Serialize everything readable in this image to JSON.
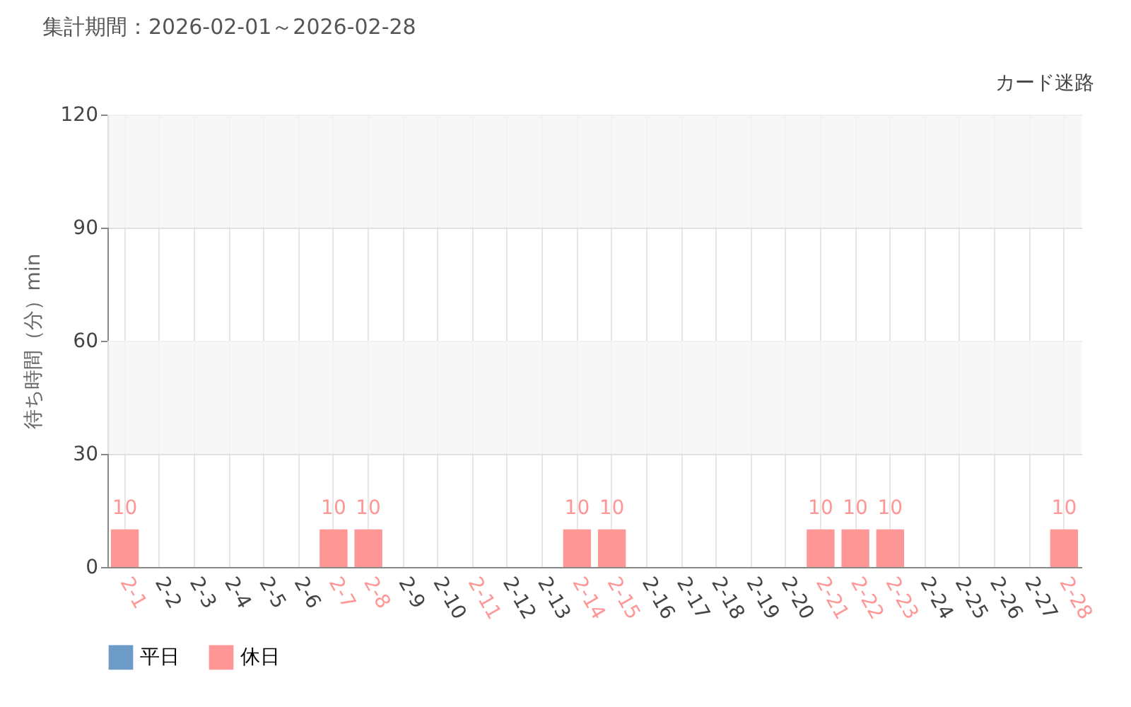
{
  "chart_data": {
    "type": "bar",
    "title": "集計期間：2026-02-01～2026-02-28",
    "subtitle": "カード迷路",
    "ylabel": "待ち時間（分）min",
    "categories": [
      "2-1",
      "2-2",
      "2-3",
      "2-4",
      "2-5",
      "2-6",
      "2-7",
      "2-8",
      "2-9",
      "2-10",
      "2-11",
      "2-12",
      "2-13",
      "2-14",
      "2-15",
      "2-16",
      "2-17",
      "2-18",
      "2-19",
      "2-20",
      "2-21",
      "2-22",
      "2-23",
      "2-24",
      "2-25",
      "2-26",
      "2-27",
      "2-28"
    ],
    "series": [
      {
        "name": "平日",
        "color": "#6b9bc6",
        "values": [
          null,
          null,
          null,
          null,
          null,
          null,
          null,
          null,
          null,
          null,
          null,
          null,
          null,
          null,
          null,
          null,
          null,
          null,
          null,
          null,
          null,
          null,
          null,
          null,
          null,
          null,
          null,
          null
        ]
      },
      {
        "name": "休日",
        "color": "#ff9696",
        "values": [
          10,
          null,
          null,
          null,
          null,
          null,
          10,
          10,
          null,
          null,
          0,
          null,
          null,
          10,
          10,
          null,
          null,
          null,
          null,
          null,
          10,
          10,
          10,
          null,
          null,
          null,
          null,
          10
        ],
        "value_labels": [
          "10",
          null,
          null,
          null,
          null,
          null,
          "10",
          "10",
          null,
          null,
          null,
          null,
          null,
          "10",
          "10",
          null,
          null,
          null,
          null,
          null,
          "10",
          "10",
          "10",
          null,
          null,
          null,
          null,
          "10"
        ]
      }
    ],
    "ylim": [
      0,
      120
    ],
    "yticks": [
      0,
      30,
      60,
      90,
      120
    ],
    "grid": true,
    "legend": "bottom left",
    "bands": [
      {
        "axis": "y",
        "from": 30,
        "to": 60,
        "color": "#f5f5f5"
      },
      {
        "axis": "y",
        "from": 90,
        "to": 120,
        "color": "#f5f5f5"
      }
    ]
  }
}
